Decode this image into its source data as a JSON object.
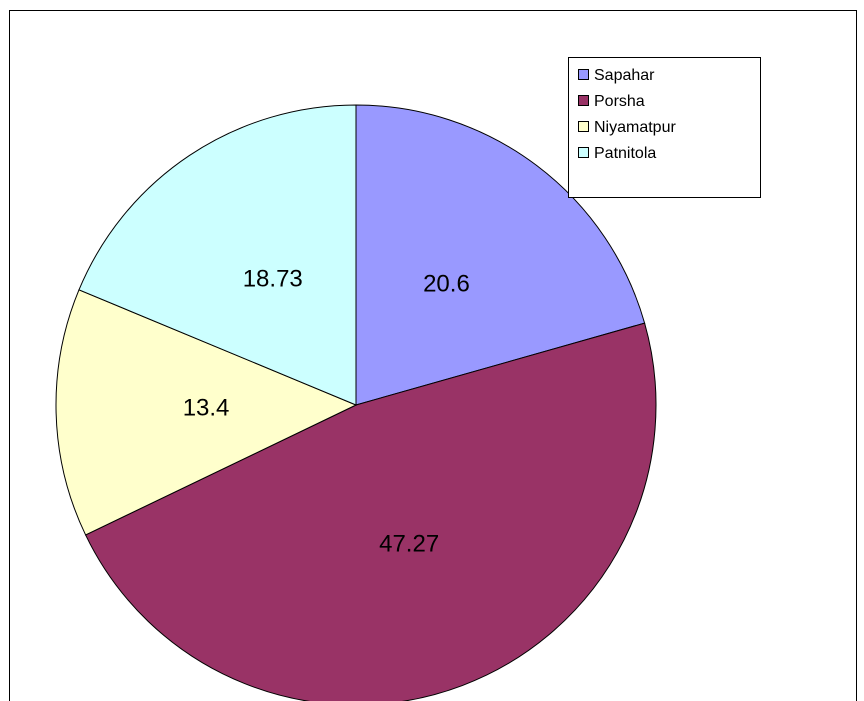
{
  "chart_data": {
    "type": "pie",
    "categories": [
      "Sapahar",
      "Porsha",
      "Niyamatpur",
      "Patnitola"
    ],
    "values": [
      20.6,
      47.27,
      13.4,
      18.73
    ],
    "colors": [
      "#9999ff",
      "#993366",
      "#ffffcc",
      "#ccffff"
    ],
    "legend": "top-right"
  }
}
